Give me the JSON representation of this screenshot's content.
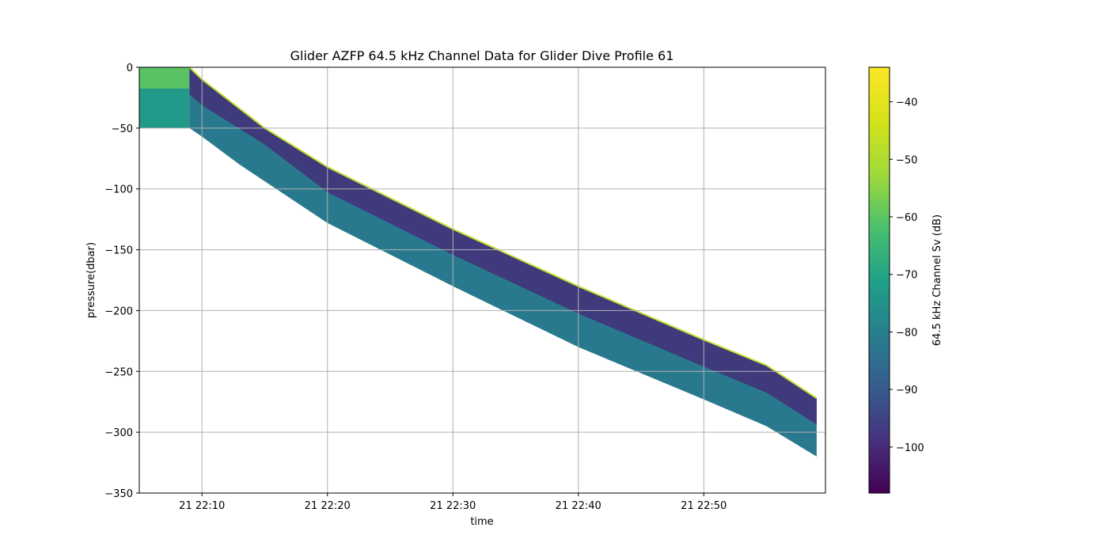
{
  "chart_data": {
    "type": "heatmap",
    "title": "Glider AZFP 64.5 kHz Channel Data for Glider Dive Profile  61",
    "xlabel": "time",
    "ylabel": "pressure(dbar)",
    "colorbar_label": "64.5 kHz Channel Sv (dB)",
    "colormap": "viridis",
    "grid": true,
    "xlim": [
      "21 22:05",
      "21 22:59"
    ],
    "ylim": [
      -350,
      0
    ],
    "x_ticks": [
      {
        "t": 10,
        "label": "21 22:10"
      },
      {
        "t": 20,
        "label": "21 22:20"
      },
      {
        "t": 30,
        "label": "21 22:30"
      },
      {
        "t": 40,
        "label": "21 22:40"
      },
      {
        "t": 50,
        "label": "21 22:50"
      }
    ],
    "y_ticks": [
      0,
      -50,
      -100,
      -150,
      -200,
      -250,
      -300,
      -350
    ],
    "color_range": [
      -108,
      -34
    ],
    "colorbar_ticks": [
      -40,
      -50,
      -60,
      -70,
      -80,
      -90,
      -100
    ],
    "profile": {
      "surface_interval": {
        "start": "21 22:05",
        "end": "21 22:09",
        "top": 0,
        "bottom": -50
      },
      "top_edge": [
        {
          "time": "21 22:09",
          "pressure": 0
        },
        {
          "time": "21 22:10",
          "pressure": -10
        },
        {
          "time": "21 22:15",
          "pressure": -50
        },
        {
          "time": "21 22:20",
          "pressure": -82
        },
        {
          "time": "21 22:30",
          "pressure": -133
        },
        {
          "time": "21 22:40",
          "pressure": -180
        },
        {
          "time": "21 22:50",
          "pressure": -224
        },
        {
          "time": "21 22:55",
          "pressure": -245
        },
        {
          "time": "21 22:59",
          "pressure": -272
        }
      ],
      "bottom_edge": [
        {
          "time": "21 22:09",
          "pressure": -50
        },
        {
          "time": "21 22:10",
          "pressure": -57
        },
        {
          "time": "21 22:13",
          "pressure": -80
        },
        {
          "time": "21 22:20",
          "pressure": -128
        },
        {
          "time": "21 22:30",
          "pressure": -180
        },
        {
          "time": "21 22:40",
          "pressure": -230
        },
        {
          "time": "21 22:50",
          "pressure": -273
        },
        {
          "time": "21 22:55",
          "pressure": -295
        },
        {
          "time": "21 22:59",
          "pressure": -320
        }
      ],
      "surface_sv": -52,
      "near_surface_sv": -68,
      "top_band_sv": -100,
      "bottom_band_sv": -78,
      "edge_sv": -40
    }
  }
}
